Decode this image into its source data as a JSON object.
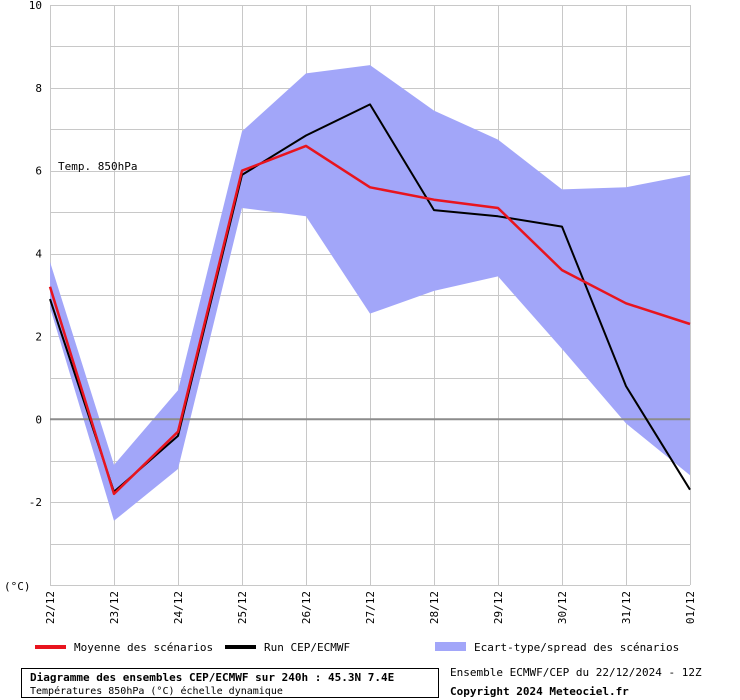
{
  "chart_data": {
    "type": "line",
    "annotation": "Temp. 850hPa",
    "ylabel_unit": "(°C)",
    "ylim": [
      -4,
      10
    ],
    "yticks": [
      10,
      8,
      6,
      4,
      2,
      0,
      -2
    ],
    "grid": true,
    "categories": [
      "22/12",
      "23/12",
      "24/12",
      "25/12",
      "26/12",
      "27/12",
      "28/12",
      "29/12",
      "30/12",
      "31/12",
      "01/12"
    ],
    "series": [
      {
        "name": "Moyenne des scénarios",
        "color": "#e8141e",
        "values": [
          3.2,
          -1.8,
          -0.3,
          6.0,
          6.6,
          5.6,
          5.3,
          5.1,
          3.6,
          2.8,
          2.3
        ]
      },
      {
        "name": "Run CEP/ECMWF",
        "color": "#000000",
        "values": [
          2.9,
          -1.75,
          -0.4,
          5.9,
          6.85,
          7.6,
          5.05,
          4.9,
          4.65,
          0.8,
          -1.7
        ]
      }
    ],
    "band": {
      "name": "Ecart-type/spread des scénarios",
      "color": "#a2a6f9",
      "upper": [
        3.8,
        -1.1,
        0.7,
        6.95,
        8.35,
        8.55,
        7.45,
        6.75,
        5.55,
        5.6,
        5.9
      ],
      "lower": [
        2.7,
        -2.45,
        -1.2,
        5.1,
        4.9,
        2.55,
        3.1,
        3.45,
        1.7,
        -0.1,
        -1.35
      ]
    }
  },
  "footer": {
    "title": "Diagramme des ensembles CEP/ECMWF sur 240h : 45.3N 7.4E",
    "subtitle": "Températures 850hPa (°C) échelle dynamique",
    "ensemble_info": "Ensemble ECMWF/CEP du 22/12/2024 - 12Z",
    "copyright": "Copyright 2024 Meteociel.fr"
  }
}
